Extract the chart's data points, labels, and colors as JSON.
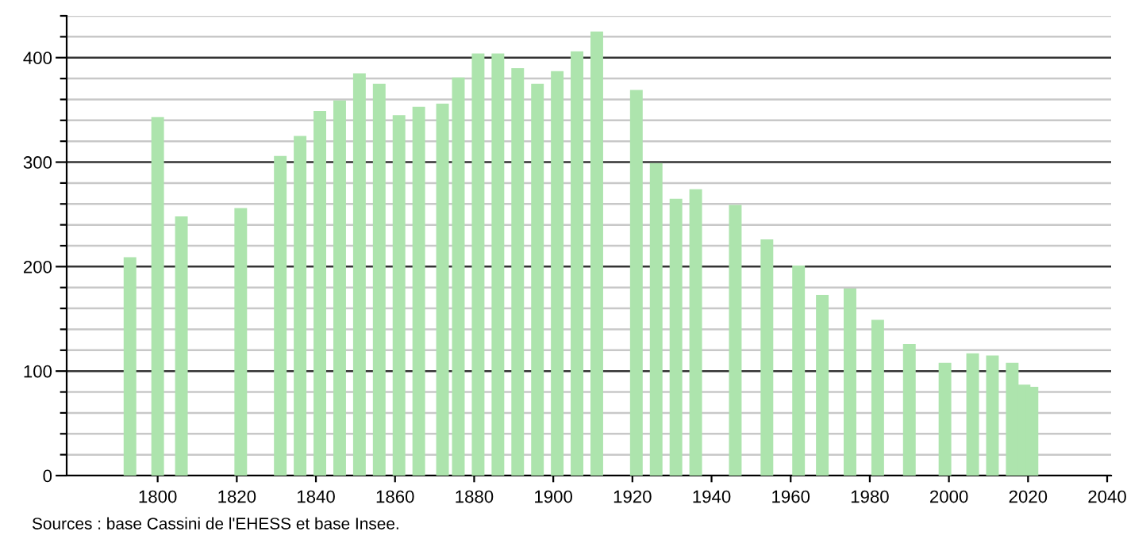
{
  "chart_data": {
    "type": "bar",
    "x": [
      1793,
      1800,
      1806,
      1821,
      1831,
      1836,
      1841,
      1846,
      1851,
      1856,
      1861,
      1866,
      1872,
      1876,
      1881,
      1886,
      1891,
      1896,
      1901,
      1906,
      1911,
      1921,
      1926,
      1931,
      1936,
      1946,
      1954,
      1962,
      1968,
      1975,
      1982,
      1990,
      1999,
      2006,
      2011,
      2016,
      2019,
      2021
    ],
    "values": [
      209,
      343,
      248,
      256,
      306,
      325,
      349,
      359,
      385,
      375,
      345,
      353,
      356,
      381,
      404,
      404,
      390,
      375,
      387,
      406,
      425,
      369,
      299,
      265,
      274,
      259,
      226,
      201,
      173,
      179,
      149,
      126,
      108,
      117,
      115,
      108,
      87,
      85
    ],
    "color": "#ade4ad",
    "xlim": [
      1777,
      2041
    ],
    "xticks": [
      1800,
      1820,
      1840,
      1860,
      1880,
      1900,
      1920,
      1940,
      1960,
      1980,
      2000,
      2020,
      2040
    ],
    "ylim": [
      0,
      440
    ],
    "yticks": [
      0,
      {
        "value": 20,
        "label": null
      },
      {
        "value": 40,
        "label": null
      },
      {
        "value": 60,
        "label": null
      },
      {
        "value": 80,
        "label": null
      },
      100,
      {
        "value": 120,
        "label": null
      },
      {
        "value": 140,
        "label": null
      },
      {
        "value": 160,
        "label": null
      },
      {
        "value": 180,
        "label": null
      },
      200,
      {
        "value": 220,
        "label": null
      },
      {
        "value": 240,
        "label": null
      },
      {
        "value": 260,
        "label": null
      },
      {
        "value": 280,
        "label": null
      },
      300,
      {
        "value": 320,
        "label": null
      },
      {
        "value": 340,
        "label": null
      },
      {
        "value": 360,
        "label": null
      },
      {
        "value": 380,
        "label": null
      },
      400,
      {
        "value": 420,
        "label": null
      },
      {
        "value": 440,
        "label": null
      }
    ],
    "grid": "y",
    "annotations": [
      "Sources : base Cassini de l'EHESS et base Insee."
    ]
  }
}
